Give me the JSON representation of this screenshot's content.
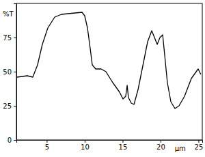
{
  "chart_data": {
    "type": "line",
    "x_label": "μm",
    "y_label": "%T",
    "x": [
      1.09,
      2.44,
      3.16,
      3.79,
      4.42,
      5.14,
      6.05,
      6.95,
      7.85,
      8.75,
      9.65,
      10.0,
      10.37,
      10.73,
      11.0,
      11.45,
      12.17,
      12.8,
      13.7,
      14.6,
      15.05,
      15.41,
      15.6,
      15.77,
      16.14,
      16.5,
      17.04,
      17.76,
      18.3,
      18.84,
      19.2,
      19.56,
      19.92,
      20.28,
      20.55,
      20.9,
      21.36,
      21.9,
      22.44,
      23.16,
      24.06,
      24.96,
      25.3
    ],
    "series": [
      {
        "name": "%T",
        "color": "#000000",
        "values": [
          46,
          47,
          46,
          55,
          70,
          82,
          90,
          92,
          92.5,
          93,
          93.5,
          91,
          82,
          67,
          55,
          52,
          52,
          50,
          42,
          35,
          30,
          32,
          40,
          31,
          27,
          26,
          37,
          57,
          72,
          80,
          75,
          70,
          75,
          77,
          62,
          42,
          28,
          23,
          25,
          32,
          45,
          52,
          48
        ]
      }
    ],
    "xlim": [
      1,
      25.5
    ],
    "xticks": [
      5,
      10,
      15,
      20,
      25
    ],
    "ylim": [
      0,
      100
    ],
    "yticks": [
      0,
      25,
      50,
      75
    ],
    "grid": false
  }
}
